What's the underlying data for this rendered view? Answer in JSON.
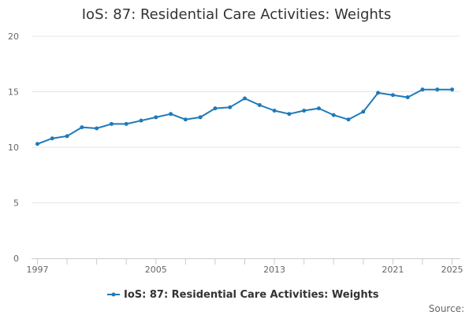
{
  "chart_data": {
    "type": "line",
    "title": "IoS: 87: Residential Care Activities: Weights",
    "xlabel": "",
    "ylabel": "",
    "ylim": [
      0,
      20
    ],
    "yticks": [
      0,
      5,
      10,
      15,
      20
    ],
    "xlim": [
      1997,
      2025
    ],
    "xtick_labels": [
      "1997",
      "2005",
      "2013",
      "2021",
      "2025"
    ],
    "grid": true,
    "legend_position": "bottom",
    "series": [
      {
        "name": "IoS: 87: Residential Care Activities: Weights",
        "color": "#1f7ab8",
        "x": [
          1997,
          1998,
          1999,
          2000,
          2001,
          2002,
          2003,
          2004,
          2005,
          2006,
          2007,
          2008,
          2009,
          2010,
          2011,
          2012,
          2013,
          2014,
          2015,
          2016,
          2017,
          2018,
          2019,
          2020,
          2021,
          2022,
          2023,
          2024,
          2025
        ],
        "values": [
          10.3,
          10.8,
          11.0,
          11.8,
          11.7,
          12.1,
          12.1,
          12.4,
          12.7,
          13.0,
          12.5,
          12.7,
          13.5,
          13.6,
          14.4,
          13.8,
          13.3,
          13.0,
          13.3,
          13.5,
          12.9,
          12.5,
          13.2,
          14.9,
          14.7,
          14.5,
          15.2,
          15.2,
          15.2
        ]
      }
    ]
  },
  "source_label": "Source:"
}
